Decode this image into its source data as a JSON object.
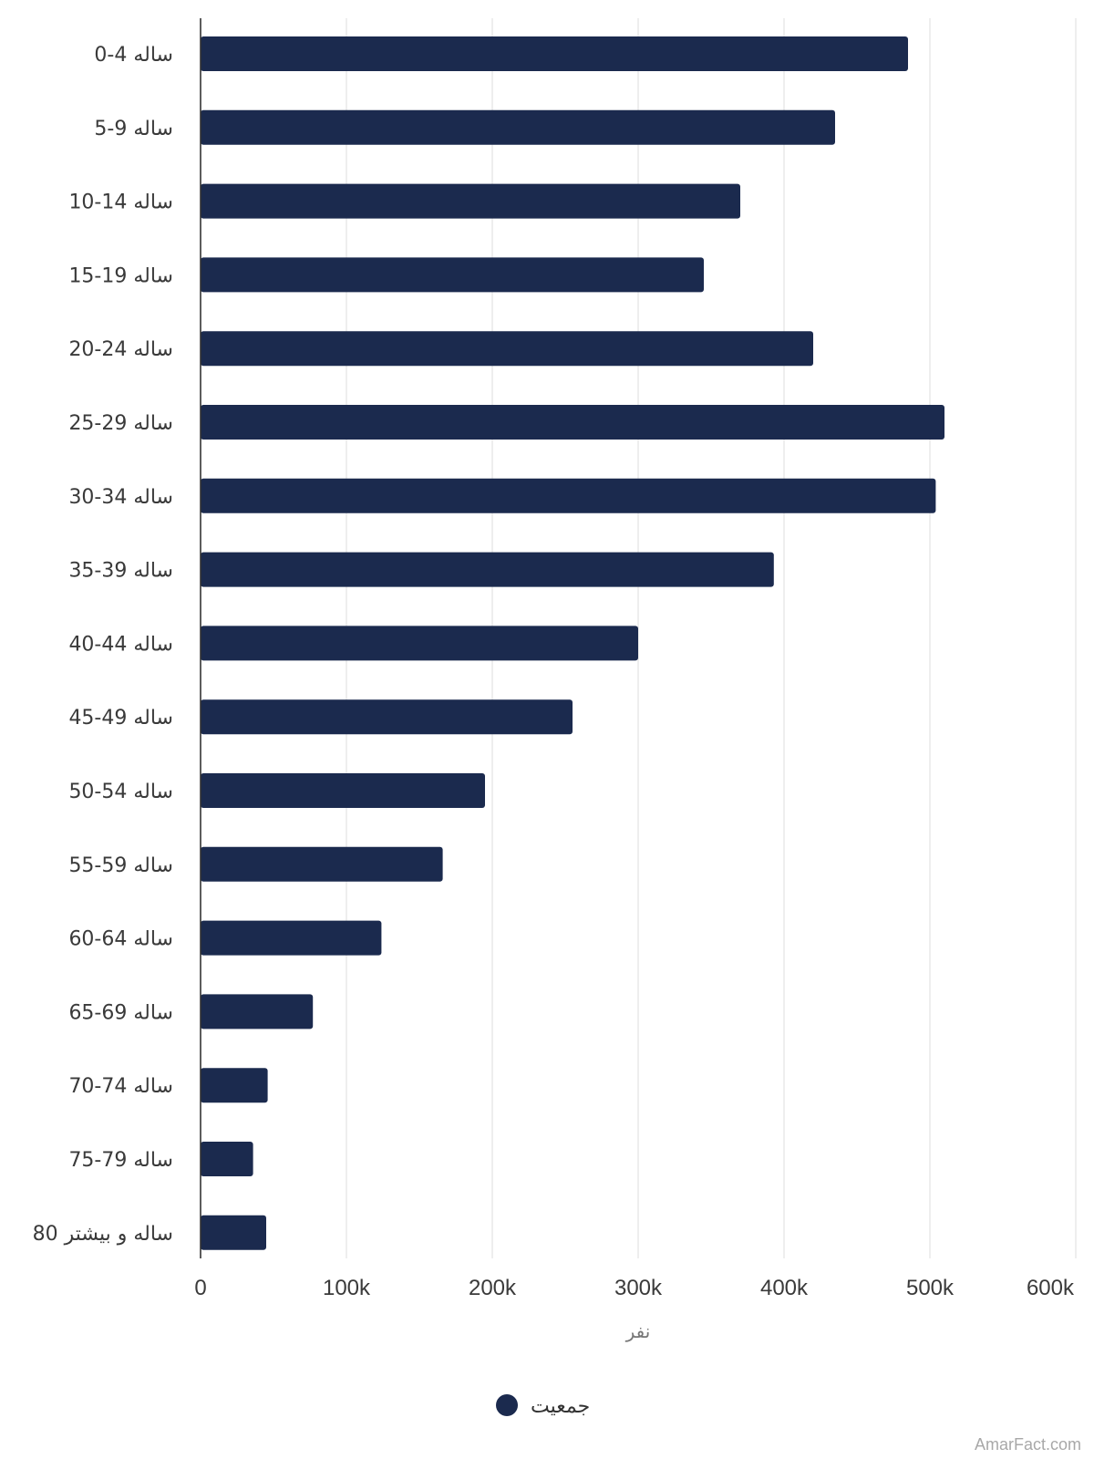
{
  "chart_data": {
    "type": "bar",
    "orientation": "horizontal",
    "categories": [
      "0-4 ساله",
      "5-9 ساله",
      "10-14 ساله",
      "15-19 ساله",
      "20-24 ساله",
      "25-29 ساله",
      "30-34 ساله",
      "35-39 ساله",
      "40-44 ساله",
      "45-49 ساله",
      "50-54 ساله",
      "55-59 ساله",
      "60-64 ساله",
      "65-69 ساله",
      "70-74 ساله",
      "75-79 ساله",
      "80 ساله و بیشتر"
    ],
    "series": [
      {
        "name": "جمعیت",
        "color": "#1b2a4e",
        "values": [
          485000,
          435000,
          370000,
          345000,
          420000,
          510000,
          504000,
          393000,
          300000,
          255000,
          195000,
          166000,
          124000,
          77000,
          46000,
          36000,
          45000
        ]
      }
    ],
    "xlabel": "نفر",
    "ylabel": "",
    "xlim": [
      0,
      600000
    ],
    "x_ticks": [
      {
        "value": 0,
        "label": "0"
      },
      {
        "value": 100000,
        "label": "100k"
      },
      {
        "value": 200000,
        "label": "200k"
      },
      {
        "value": 300000,
        "label": "300k"
      },
      {
        "value": 400000,
        "label": "400k"
      },
      {
        "value": 500000,
        "label": "500k"
      },
      {
        "value": 600000,
        "label": "600k"
      }
    ],
    "grid": true,
    "legend_position": "bottom-center"
  },
  "watermark": "AmarFact.com"
}
